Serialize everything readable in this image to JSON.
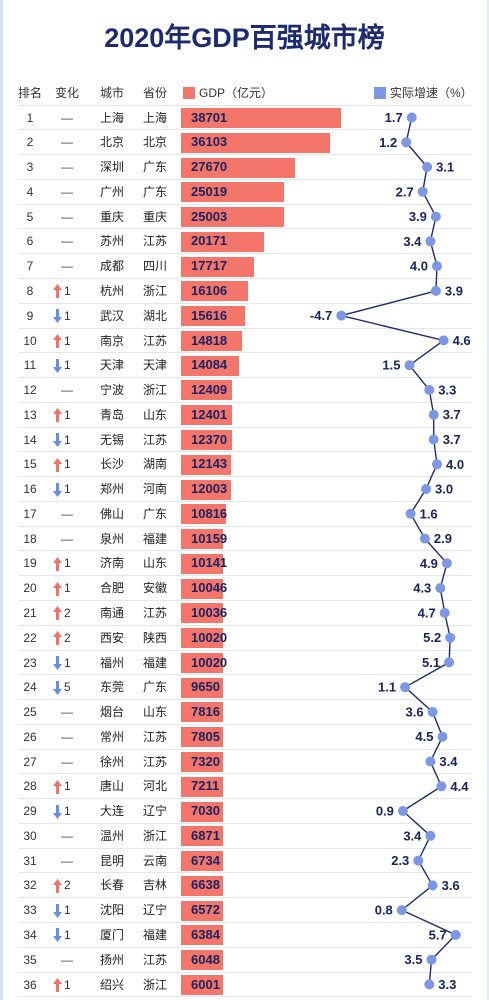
{
  "colors": {
    "title": "#1d2a72",
    "line": "#1f2b6d",
    "label": "#1b2461",
    "up_arrow": "#ef7468",
    "down_arrow": "#6a8ddf"
  },
  "chart_data": {
    "type": "table",
    "title": "2020年GDP百强城市榜",
    "columns": {
      "rank": "排名",
      "change": "变化",
      "city": "城市",
      "province": "省份"
    },
    "series": [
      {
        "name": "GDP（亿元）",
        "type": "bar",
        "color": "#f4766b"
      },
      {
        "name": "实际增速（%）",
        "type": "line",
        "color": "#7c97e4"
      }
    ],
    "no_change_symbol": "—",
    "rows": [
      {
        "rank": 1,
        "city": "上海",
        "province": "上海",
        "gdp": 38701,
        "growth": 1.7
      },
      {
        "rank": 2,
        "city": "北京",
        "province": "北京",
        "gdp": 36103,
        "growth": 1.2
      },
      {
        "rank": 3,
        "city": "深圳",
        "province": "广东",
        "gdp": 27670,
        "growth": 3.1
      },
      {
        "rank": 4,
        "city": "广州",
        "province": "广东",
        "gdp": 25019,
        "growth": 2.7
      },
      {
        "rank": 5,
        "city": "重庆",
        "province": "重庆",
        "gdp": 25003,
        "growth": 3.9
      },
      {
        "rank": 6,
        "city": "苏州",
        "province": "江苏",
        "gdp": 20171,
        "growth": 3.4
      },
      {
        "rank": 7,
        "city": "成都",
        "province": "四川",
        "gdp": 17717,
        "growth": 4.0
      },
      {
        "rank": 8,
        "change_icon": "up-arrow-icon",
        "change_by": 1,
        "city": "杭州",
        "province": "浙江",
        "gdp": 16106,
        "growth": 3.9
      },
      {
        "rank": 9,
        "change_icon": "down-arrow-icon",
        "change_by": 1,
        "city": "武汉",
        "province": "湖北",
        "gdp": 15616,
        "growth": -4.7
      },
      {
        "rank": 10,
        "change_icon": "up-arrow-icon",
        "change_by": 1,
        "city": "南京",
        "province": "江苏",
        "gdp": 14818,
        "growth": 4.6
      },
      {
        "rank": 11,
        "change_icon": "down-arrow-icon",
        "change_by": 1,
        "city": "天津",
        "province": "天津",
        "gdp": 14084,
        "growth": 1.5
      },
      {
        "rank": 12,
        "city": "宁波",
        "province": "浙江",
        "gdp": 12409,
        "growth": 3.3
      },
      {
        "rank": 13,
        "change_icon": "up-arrow-icon",
        "change_by": 1,
        "city": "青岛",
        "province": "山东",
        "gdp": 12401,
        "growth": 3.7
      },
      {
        "rank": 14,
        "change_icon": "down-arrow-icon",
        "change_by": 1,
        "city": "无锡",
        "province": "江苏",
        "gdp": 12370,
        "growth": 3.7
      },
      {
        "rank": 15,
        "change_icon": "up-arrow-icon",
        "change_by": 1,
        "city": "长沙",
        "province": "湖南",
        "gdp": 12143,
        "growth": 4.0
      },
      {
        "rank": 16,
        "change_icon": "down-arrow-icon",
        "change_by": 1,
        "city": "郑州",
        "province": "河南",
        "gdp": 12003,
        "growth": 3.0
      },
      {
        "rank": 17,
        "city": "佛山",
        "province": "广东",
        "gdp": 10816,
        "growth": 1.6
      },
      {
        "rank": 18,
        "city": "泉州",
        "province": "福建",
        "gdp": 10159,
        "growth": 2.9
      },
      {
        "rank": 19,
        "change_icon": "up-arrow-icon",
        "change_by": 1,
        "city": "济南",
        "province": "山东",
        "gdp": 10141,
        "growth": 4.9
      },
      {
        "rank": 20,
        "change_icon": "up-arrow-icon",
        "change_by": 1,
        "city": "合肥",
        "province": "安徽",
        "gdp": 10046,
        "growth": 4.3
      },
      {
        "rank": 21,
        "change_icon": "up-arrow-icon",
        "change_by": 2,
        "city": "南通",
        "province": "江苏",
        "gdp": 10036,
        "growth": 4.7
      },
      {
        "rank": 22,
        "change_icon": "up-arrow-icon",
        "change_by": 2,
        "city": "西安",
        "province": "陕西",
        "gdp": 10020,
        "growth": 5.2
      },
      {
        "rank": 23,
        "change_icon": "down-arrow-icon",
        "change_by": 1,
        "city": "福州",
        "province": "福建",
        "gdp": 10020,
        "growth": 5.1
      },
      {
        "rank": 24,
        "change_icon": "down-arrow-icon",
        "change_by": 5,
        "city": "东莞",
        "province": "广东",
        "gdp": 9650,
        "growth": 1.1
      },
      {
        "rank": 25,
        "city": "烟台",
        "province": "山东",
        "gdp": 7816,
        "growth": 3.6
      },
      {
        "rank": 26,
        "city": "常州",
        "province": "江苏",
        "gdp": 7805,
        "growth": 4.5
      },
      {
        "rank": 27,
        "city": "徐州",
        "province": "江苏",
        "gdp": 7320,
        "growth": 3.4
      },
      {
        "rank": 28,
        "change_icon": "up-arrow-icon",
        "change_by": 1,
        "city": "唐山",
        "province": "河北",
        "gdp": 7211,
        "growth": 4.4
      },
      {
        "rank": 29,
        "change_icon": "down-arrow-icon",
        "change_by": 1,
        "city": "大连",
        "province": "辽宁",
        "gdp": 7030,
        "growth": 0.9
      },
      {
        "rank": 30,
        "city": "温州",
        "province": "浙江",
        "gdp": 6871,
        "growth": 3.4
      },
      {
        "rank": 31,
        "city": "昆明",
        "province": "云南",
        "gdp": 6734,
        "growth": 2.3
      },
      {
        "rank": 32,
        "change_icon": "up-arrow-icon",
        "change_by": 2,
        "city": "长春",
        "province": "吉林",
        "gdp": 6638,
        "growth": 3.6
      },
      {
        "rank": 33,
        "change_icon": "down-arrow-icon",
        "change_by": 1,
        "city": "沈阳",
        "province": "辽宁",
        "gdp": 6572,
        "growth": 0.8
      },
      {
        "rank": 34,
        "change_icon": "down-arrow-icon",
        "change_by": 1,
        "city": "厦门",
        "province": "福建",
        "gdp": 6384,
        "growth": 5.7
      },
      {
        "rank": 35,
        "city": "扬州",
        "province": "江苏",
        "gdp": 6048,
        "growth": 3.5
      },
      {
        "rank": 36,
        "change_icon": "up-arrow-icon",
        "change_by": 1,
        "city": "绍兴",
        "province": "浙江",
        "gdp": 6001,
        "growth": 3.3
      }
    ]
  }
}
